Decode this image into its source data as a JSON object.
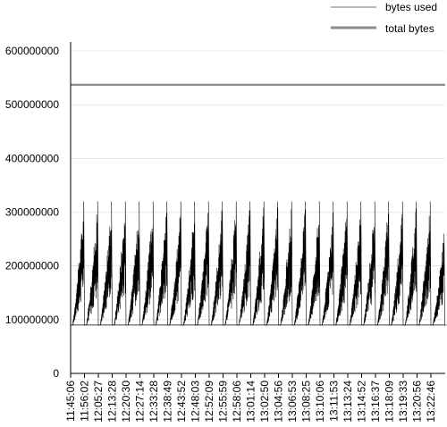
{
  "chart_data": {
    "type": "line",
    "title": "",
    "xlabel": "",
    "ylabel": "",
    "ylim": [
      0,
      600000000
    ],
    "grid": true,
    "legend": {
      "placement": "top-right",
      "entries": [
        "bytes used",
        "total bytes"
      ]
    },
    "y_ticks": [
      "0",
      "100000000",
      "200000000",
      "300000000",
      "400000000",
      "500000000",
      "600000000"
    ],
    "x_ticks": [
      "11:45:06",
      "11:56:02",
      "12:05:27",
      "12:13:28",
      "12:20:30",
      "12:27:14",
      "12:33:28",
      "12:38:49",
      "12:43:52",
      "12:48:03",
      "12:52:09",
      "12:55:59",
      "12:58:06",
      "13:01:14",
      "13:02:50",
      "13:04:56",
      "13:06:53",
      "13:08:25",
      "13:10:06",
      "13:11:53",
      "13:13:24",
      "13:14:52",
      "13:16:37",
      "13:18:09",
      "13:19:33",
      "13:20:56",
      "13:22:46"
    ],
    "series": [
      {
        "name": "bytes used",
        "color": "#000000",
        "pattern": "sawtooth",
        "min": 90000000,
        "cycle_peaks": [
          320000000,
          320000000,
          320000000,
          320000000,
          320000000,
          320000000,
          320000000,
          320000000,
          320000000,
          320000000,
          320000000,
          320000000,
          320000000,
          320000000,
          320000000,
          320000000,
          320000000,
          320000000,
          320000000,
          320000000,
          320000000,
          320000000,
          320000000,
          320000000,
          320000000,
          320000000,
          260000000
        ]
      },
      {
        "name": "total bytes",
        "color": "#8c8c8c",
        "values": [
          537000000,
          537000000
        ]
      }
    ]
  }
}
